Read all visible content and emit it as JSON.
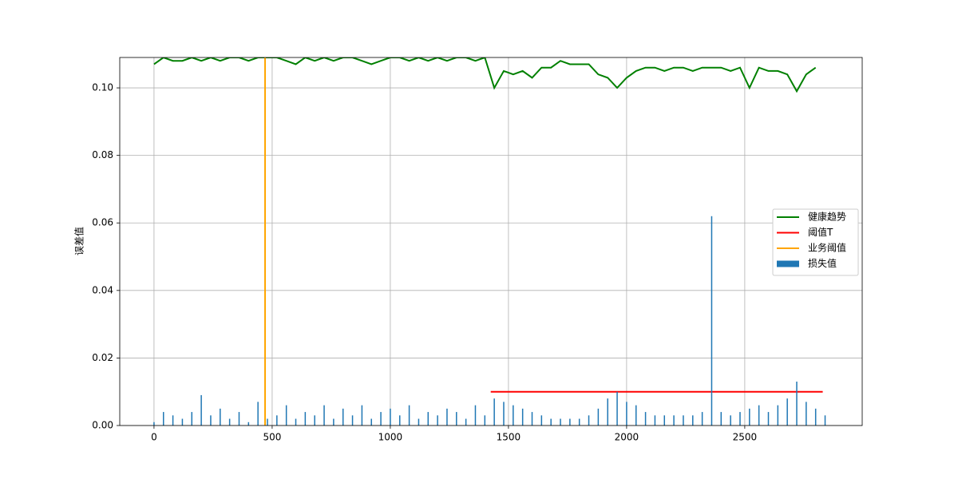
{
  "chart_data": {
    "type": "bar-line",
    "ylabel": "误差值",
    "xlim": [
      -145,
      2997
    ],
    "ylim": [
      0,
      0.109
    ],
    "xticks": [
      0,
      500,
      1000,
      1500,
      2000,
      2500
    ],
    "yticks": [
      {
        "value": 0,
        "label": "0.00"
      },
      {
        "value": 0.02,
        "label": "0.02"
      },
      {
        "value": 0.04,
        "label": "0.04"
      },
      {
        "value": 0.06,
        "label": "0.06"
      },
      {
        "value": 0.08,
        "label": "0.08"
      },
      {
        "value": 0.1,
        "label": "0.10"
      }
    ],
    "grid": true,
    "legend": "right",
    "series": [
      {
        "name": "健康趋势",
        "kind": "line",
        "color": "#008000",
        "x": [
          0,
          40,
          80,
          120,
          160,
          200,
          240,
          280,
          320,
          360,
          400,
          440,
          480,
          520,
          560,
          600,
          640,
          680,
          720,
          760,
          800,
          840,
          880,
          920,
          960,
          1000,
          1040,
          1080,
          1120,
          1160,
          1200,
          1240,
          1280,
          1320,
          1360,
          1400,
          1440,
          1480,
          1520,
          1560,
          1600,
          1640,
          1680,
          1720,
          1760,
          1800,
          1840,
          1880,
          1920,
          1960,
          2000,
          2040,
          2080,
          2120,
          2160,
          2200,
          2240,
          2280,
          2320,
          2360,
          2400,
          2440,
          2480,
          2520,
          2560,
          2600,
          2640,
          2680,
          2720,
          2760,
          2800
        ],
        "values": [
          0.107,
          0.109,
          0.108,
          0.108,
          0.109,
          0.108,
          0.109,
          0.108,
          0.109,
          0.109,
          0.108,
          0.109,
          0.109,
          0.109,
          0.108,
          0.107,
          0.109,
          0.108,
          0.109,
          0.108,
          0.109,
          0.109,
          0.108,
          0.107,
          0.108,
          0.109,
          0.109,
          0.108,
          0.109,
          0.108,
          0.109,
          0.108,
          0.109,
          0.109,
          0.108,
          0.109,
          0.1,
          0.105,
          0.104,
          0.105,
          0.103,
          0.106,
          0.106,
          0.108,
          0.107,
          0.107,
          0.107,
          0.104,
          0.103,
          0.1,
          0.103,
          0.105,
          0.106,
          0.106,
          0.105,
          0.106,
          0.106,
          0.105,
          0.106,
          0.106,
          0.106,
          0.105,
          0.106,
          0.1,
          0.106,
          0.105,
          0.105,
          0.104,
          0.099,
          0.104,
          0.106
        ]
      },
      {
        "name": "阈值T",
        "kind": "line",
        "color": "#ff0000",
        "x": [
          1425,
          2830
        ],
        "values": [
          0.01,
          0.01
        ]
      },
      {
        "name": "业务阈值",
        "kind": "line",
        "color": "#ffa500",
        "x": [
          470,
          470
        ],
        "values": [
          0,
          0.109
        ]
      },
      {
        "name": "损失值",
        "kind": "bar",
        "color": "#1f77b4",
        "x": [
          0,
          40,
          80,
          120,
          160,
          200,
          240,
          280,
          320,
          360,
          400,
          440,
          480,
          520,
          560,
          600,
          640,
          680,
          720,
          760,
          800,
          840,
          880,
          920,
          960,
          1000,
          1040,
          1080,
          1120,
          1160,
          1200,
          1240,
          1280,
          1320,
          1360,
          1400,
          1440,
          1480,
          1520,
          1560,
          1600,
          1640,
          1680,
          1720,
          1760,
          1800,
          1840,
          1880,
          1920,
          1960,
          2000,
          2040,
          2080,
          2120,
          2160,
          2200,
          2240,
          2280,
          2320,
          2360,
          2400,
          2440,
          2480,
          2520,
          2560,
          2600,
          2640,
          2680,
          2720,
          2760,
          2800,
          2840
        ],
        "values": [
          0.001,
          0.004,
          0.003,
          0.002,
          0.004,
          0.009,
          0.003,
          0.005,
          0.002,
          0.004,
          0.001,
          0.007,
          0.002,
          0.003,
          0.006,
          0.002,
          0.004,
          0.003,
          0.006,
          0.002,
          0.005,
          0.003,
          0.006,
          0.002,
          0.004,
          0.005,
          0.003,
          0.006,
          0.002,
          0.004,
          0.003,
          0.005,
          0.004,
          0.002,
          0.006,
          0.003,
          0.008,
          0.007,
          0.006,
          0.005,
          0.004,
          0.003,
          0.002,
          0.002,
          0.002,
          0.002,
          0.003,
          0.005,
          0.008,
          0.01,
          0.007,
          0.006,
          0.004,
          0.003,
          0.003,
          0.003,
          0.003,
          0.003,
          0.004,
          0.062,
          0.004,
          0.003,
          0.004,
          0.005,
          0.006,
          0.004,
          0.006,
          0.008,
          0.013,
          0.007,
          0.005,
          0.003
        ]
      }
    ]
  }
}
